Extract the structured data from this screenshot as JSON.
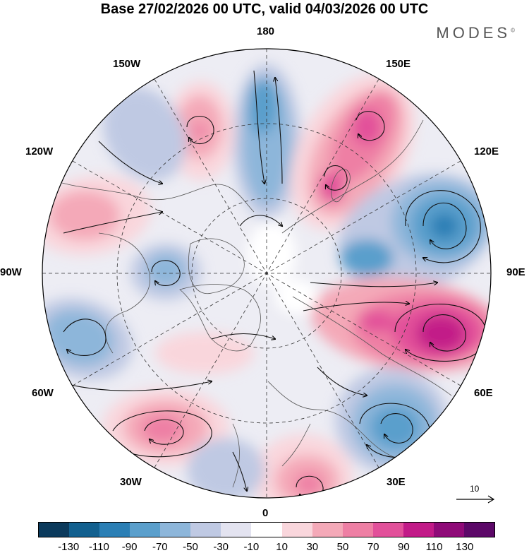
{
  "title": "Base 27/02/2026 00 UTC, valid 04/03/2026 00 UTC",
  "logo": "MODES",
  "logo_mark": "©",
  "longitude_labels": {
    "lon_180": "180",
    "lon_150w": "150W",
    "lon_150e": "150E",
    "lon_120w": "120W",
    "lon_120e": "120E",
    "lon_90w": "90W",
    "lon_90e": "90E",
    "lon_60w": "60W",
    "lon_60e": "60E",
    "lon_30w": "30W",
    "lon_30e": "30E",
    "lon_0": "0"
  },
  "reference_vector": "10",
  "colorbar": {
    "colors": [
      "#0b3a5c",
      "#12608f",
      "#2b7fb5",
      "#5a9fcc",
      "#8db6da",
      "#bfc9e3",
      "#e3e3f0",
      "#ffffff",
      "#f9d6dc",
      "#f4a9b8",
      "#ee7fa4",
      "#e2509a",
      "#c21a88",
      "#8f0a78",
      "#5c0868"
    ],
    "tick_labels": [
      "-130",
      "-110",
      "-90",
      "-70",
      "-50",
      "-30",
      "-10",
      "10",
      "30",
      "50",
      "70",
      "90",
      "110",
      "130"
    ]
  },
  "map_data": {
    "projection": "north polar stereographic",
    "anomalies": [
      {
        "name": "anomaly-east-siberia-blue",
        "sign": "negative",
        "value": -70
      },
      {
        "name": "anomaly-japan-pink",
        "sign": "positive",
        "value": 90
      },
      {
        "name": "anomaly-mongolia-blue",
        "sign": "negative",
        "value": -70
      },
      {
        "name": "anomaly-siberia-magenta",
        "sign": "positive",
        "value": 110
      },
      {
        "name": "anomaly-europe-blue",
        "sign": "negative",
        "value": -70
      },
      {
        "name": "anomaly-north-atlantic-pink",
        "sign": "positive",
        "value": 70
      },
      {
        "name": "anomaly-east-atlantic-pink",
        "sign": "positive",
        "value": 70
      },
      {
        "name": "anomaly-west-atlantic-blue",
        "sign": "negative",
        "value": -50
      },
      {
        "name": "anomaly-canada-blue",
        "sign": "negative",
        "value": -50
      },
      {
        "name": "anomaly-pacific-pink",
        "sign": "positive",
        "value": 50
      },
      {
        "name": "anomaly-alaska-blue",
        "sign": "negative",
        "value": -50
      },
      {
        "name": "anomaly-north-america-pink",
        "sign": "positive",
        "value": 50
      }
    ]
  }
}
